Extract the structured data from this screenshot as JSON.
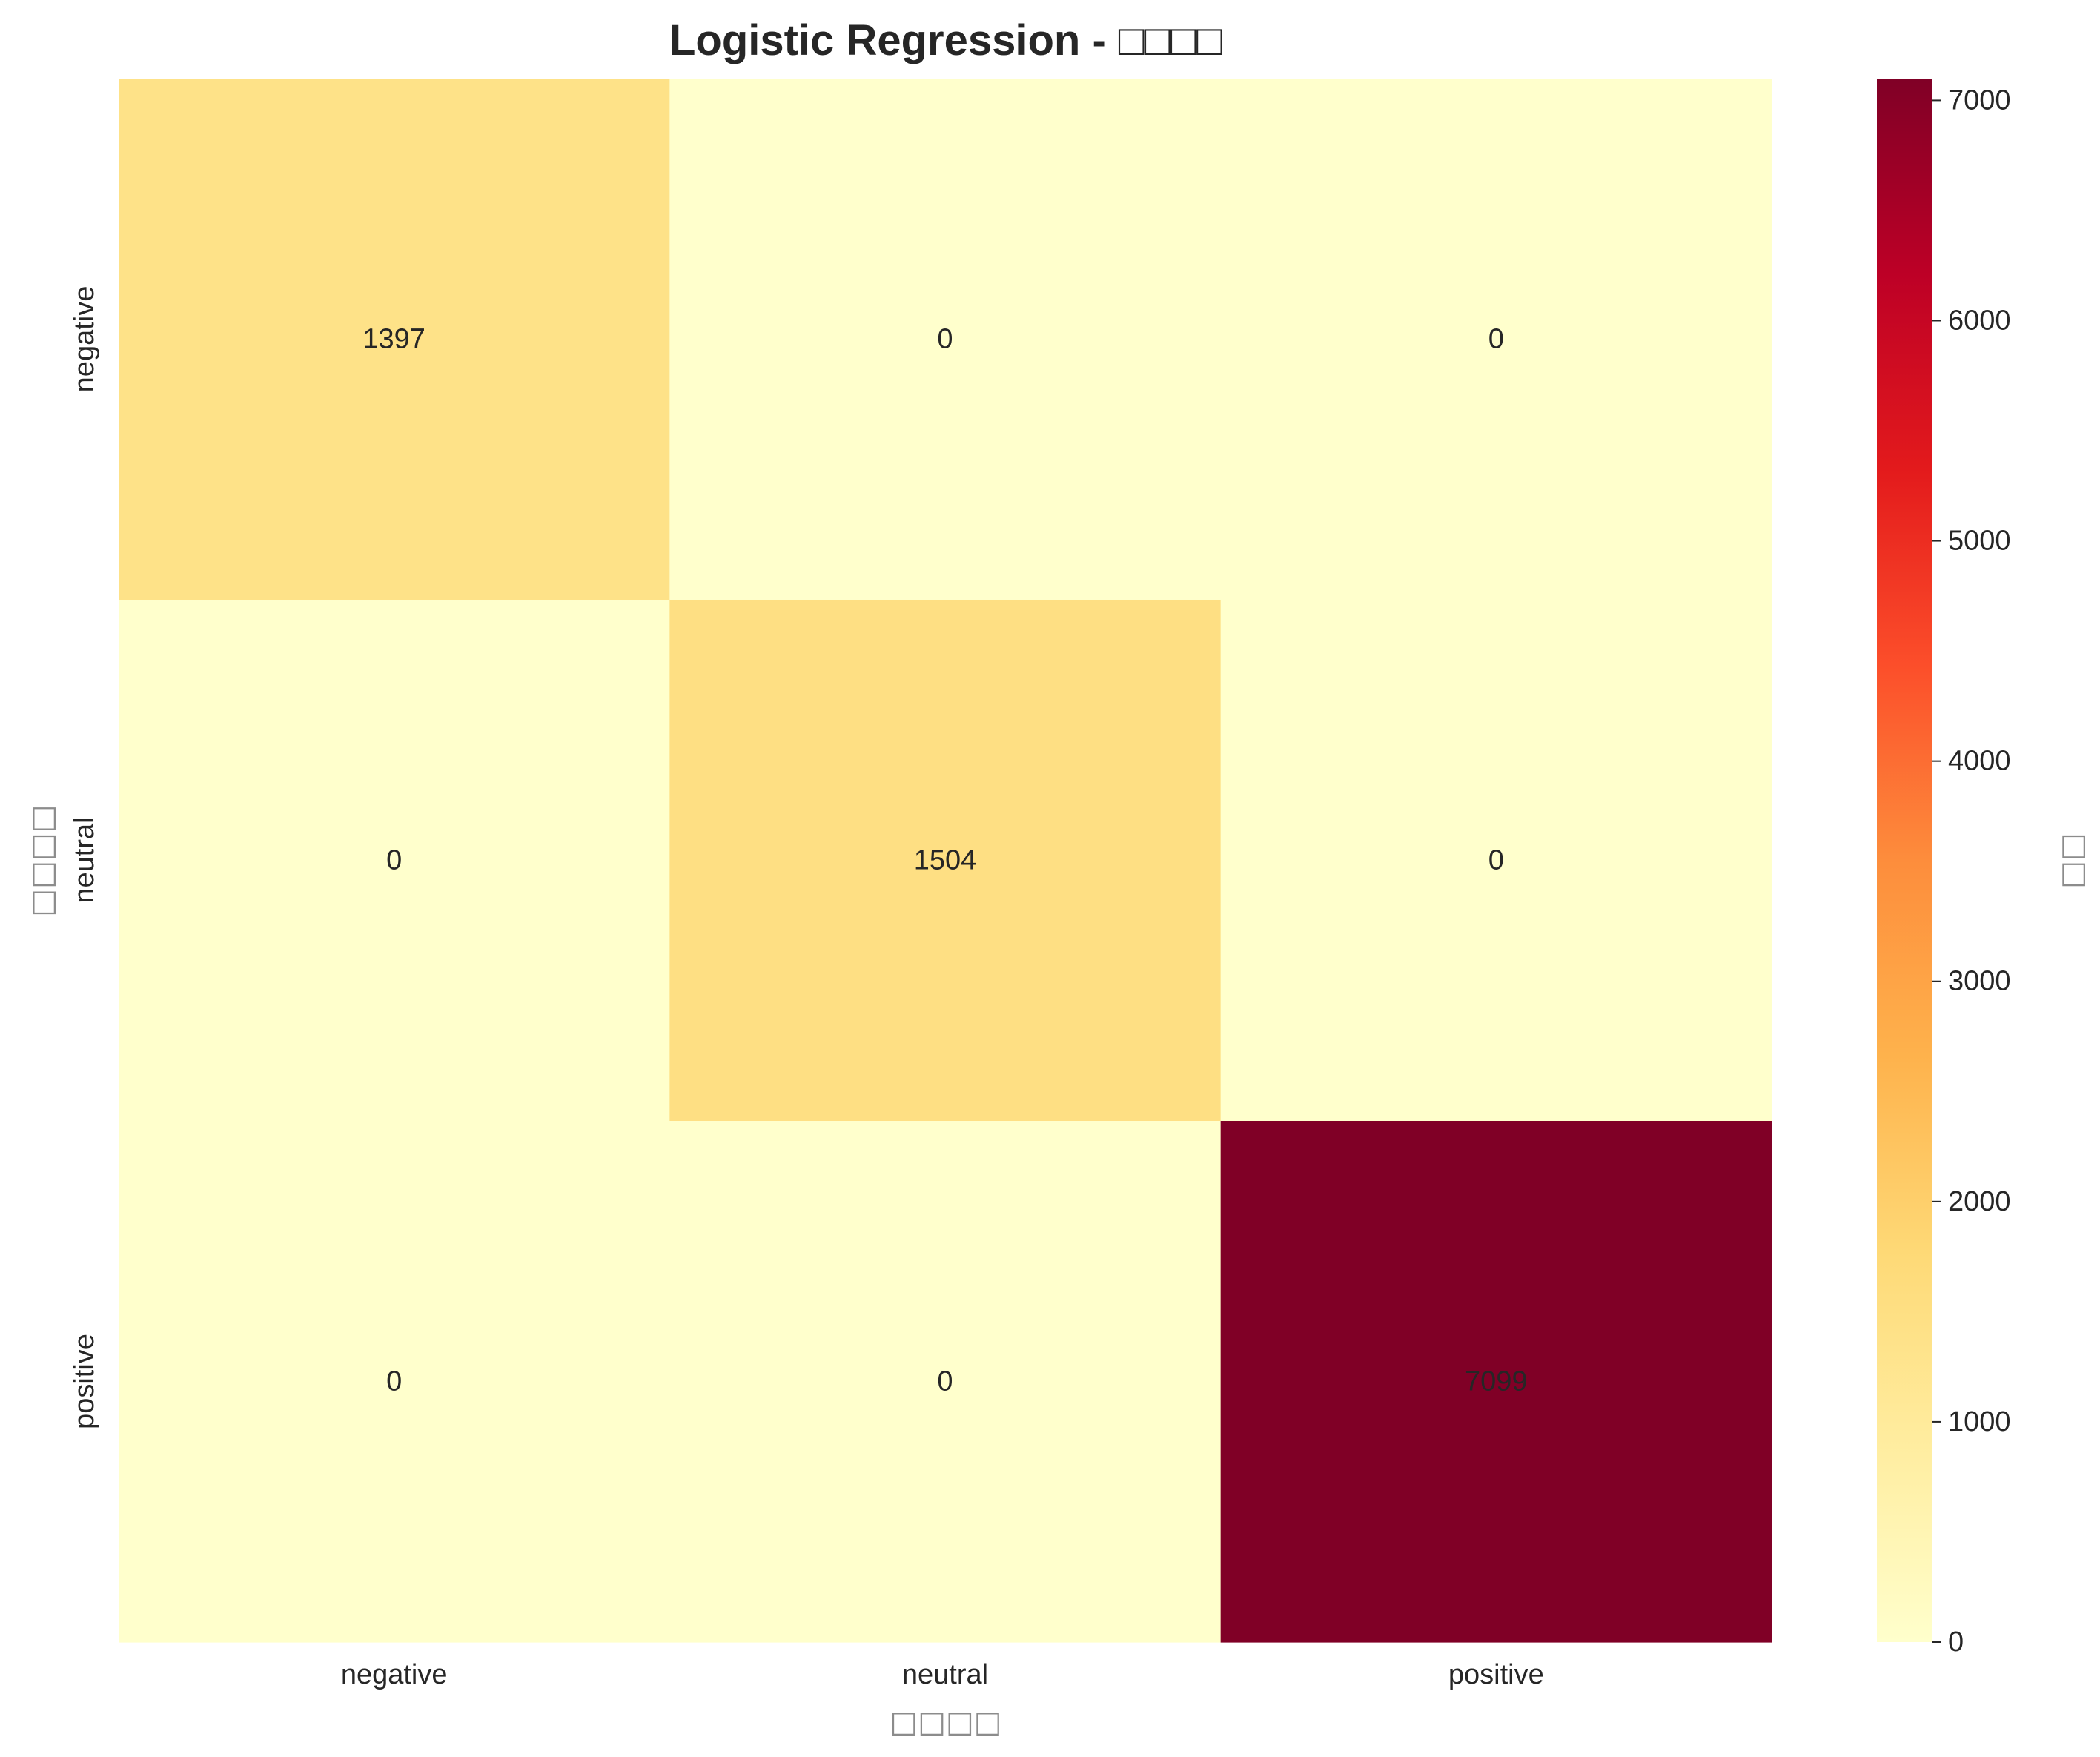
{
  "chart_data": {
    "type": "heatmap",
    "title": "Logistic Regression - □□□□",
    "xlabel": "□□□□",
    "ylabel": "□□□□",
    "x_categories": [
      "negative",
      "neutral",
      "positive"
    ],
    "y_categories": [
      "negative",
      "neutral",
      "positive"
    ],
    "values": [
      [
        1397,
        0,
        0
      ],
      [
        0,
        1504,
        0
      ],
      [
        0,
        0,
        7099
      ]
    ],
    "colorbar": {
      "label": "□□",
      "colormap": "YlOrRd",
      "range": [
        0,
        7099
      ],
      "ticks": [
        0,
        1000,
        2000,
        3000,
        4000,
        5000,
        6000,
        7000
      ]
    },
    "colors": {
      "low": "#ffffcc",
      "high": "#800026"
    }
  }
}
